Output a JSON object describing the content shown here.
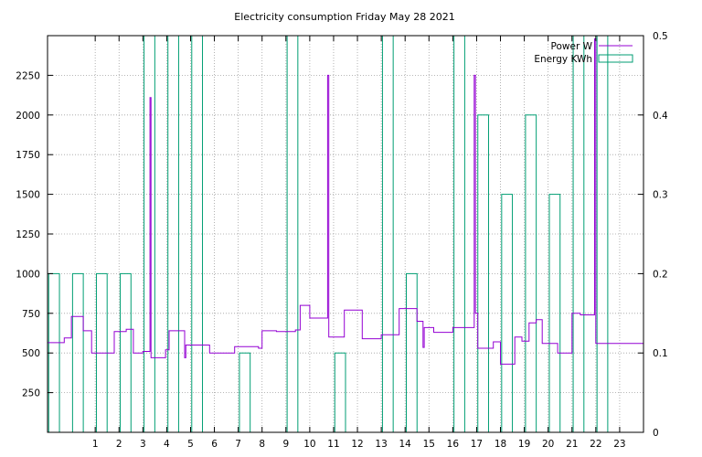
{
  "chart_data": {
    "type": "line",
    "title": "Electricity consumption Friday May 28 2021",
    "xlim": [
      -1,
      24
    ],
    "xticks": [
      1,
      2,
      3,
      4,
      5,
      6,
      7,
      8,
      9,
      10,
      11,
      12,
      13,
      14,
      15,
      16,
      17,
      18,
      19,
      20,
      21,
      22,
      23
    ],
    "ylim": [
      0,
      2500
    ],
    "yticks": [
      250,
      500,
      750,
      1000,
      1250,
      1500,
      1750,
      2000,
      2250
    ],
    "y2lim": [
      0,
      0.5
    ],
    "y2ticks": [
      0,
      0.1,
      0.2,
      0.3,
      0.4,
      0.5
    ],
    "grid": true,
    "legend_position": "top-right",
    "colors": {
      "power": "#9400d3",
      "energy": "#009e73"
    },
    "series": [
      {
        "name": "Power W",
        "axis": "left",
        "style": "step",
        "points": [
          [
            -1.0,
            565
          ],
          [
            -0.3,
            565
          ],
          [
            -0.3,
            595
          ],
          [
            0.0,
            595
          ],
          [
            0.0,
            730
          ],
          [
            0.5,
            730
          ],
          [
            0.5,
            640
          ],
          [
            0.85,
            640
          ],
          [
            0.85,
            500
          ],
          [
            1.8,
            500
          ],
          [
            1.8,
            635
          ],
          [
            2.3,
            635
          ],
          [
            2.3,
            650
          ],
          [
            2.6,
            650
          ],
          [
            2.6,
            500
          ],
          [
            3.0,
            500
          ],
          [
            3.0,
            510
          ],
          [
            3.3,
            510
          ],
          [
            3.3,
            2110
          ],
          [
            3.34,
            2110
          ],
          [
            3.34,
            470
          ],
          [
            3.95,
            470
          ],
          [
            3.95,
            520
          ],
          [
            4.1,
            520
          ],
          [
            4.1,
            640
          ],
          [
            4.75,
            640
          ],
          [
            4.75,
            470
          ],
          [
            4.8,
            470
          ],
          [
            4.8,
            550
          ],
          [
            5.8,
            550
          ],
          [
            5.8,
            500
          ],
          [
            6.85,
            500
          ],
          [
            6.85,
            540
          ],
          [
            7.85,
            540
          ],
          [
            7.85,
            530
          ],
          [
            8.0,
            530
          ],
          [
            8.0,
            640
          ],
          [
            8.6,
            640
          ],
          [
            8.6,
            635
          ],
          [
            9.4,
            635
          ],
          [
            9.4,
            645
          ],
          [
            9.6,
            645
          ],
          [
            9.6,
            800
          ],
          [
            10.0,
            800
          ],
          [
            10.0,
            720
          ],
          [
            10.75,
            720
          ],
          [
            10.75,
            2250
          ],
          [
            10.8,
            2250
          ],
          [
            10.8,
            600
          ],
          [
            11.45,
            600
          ],
          [
            11.45,
            770
          ],
          [
            12.2,
            770
          ],
          [
            12.2,
            590
          ],
          [
            13.0,
            590
          ],
          [
            13.0,
            615
          ],
          [
            13.75,
            615
          ],
          [
            13.75,
            780
          ],
          [
            14.5,
            780
          ],
          [
            14.5,
            700
          ],
          [
            14.75,
            700
          ],
          [
            14.75,
            535
          ],
          [
            14.8,
            535
          ],
          [
            14.8,
            660
          ],
          [
            15.2,
            660
          ],
          [
            15.2,
            630
          ],
          [
            16.0,
            630
          ],
          [
            16.0,
            660
          ],
          [
            16.9,
            660
          ],
          [
            16.9,
            2250
          ],
          [
            16.95,
            2250
          ],
          [
            16.95,
            750
          ],
          [
            17.05,
            750
          ],
          [
            17.05,
            530
          ],
          [
            17.7,
            530
          ],
          [
            17.7,
            570
          ],
          [
            18.0,
            570
          ],
          [
            18.0,
            430
          ],
          [
            18.6,
            430
          ],
          [
            18.6,
            600
          ],
          [
            18.9,
            600
          ],
          [
            18.9,
            575
          ],
          [
            19.2,
            575
          ],
          [
            19.2,
            690
          ],
          [
            19.5,
            690
          ],
          [
            19.5,
            710
          ],
          [
            19.75,
            710
          ],
          [
            19.75,
            560
          ],
          [
            20.4,
            560
          ],
          [
            20.4,
            500
          ],
          [
            21.0,
            500
          ],
          [
            21.0,
            750
          ],
          [
            21.35,
            750
          ],
          [
            21.35,
            740
          ],
          [
            21.95,
            740
          ],
          [
            21.95,
            2480
          ],
          [
            22.0,
            2480
          ],
          [
            22.0,
            560
          ],
          [
            24.0,
            560
          ]
        ]
      },
      {
        "name": "Energy KWh",
        "axis": "right",
        "style": "boxes",
        "x": [
          -1,
          0,
          1,
          2,
          3,
          4,
          5,
          6,
          7,
          8,
          9,
          10,
          11,
          12,
          13,
          14,
          15,
          16,
          17,
          18,
          19,
          20,
          21,
          22,
          23
        ],
        "values": [
          0.2,
          0.2,
          0.2,
          0.2,
          0.5,
          0.5,
          0.5,
          0.0,
          0.1,
          0.0,
          0.5,
          0.0,
          0.1,
          0.0,
          0.5,
          0.2,
          0.0,
          0.5,
          0.4,
          0.3,
          0.4,
          0.3,
          0.5,
          0.5,
          0.0
        ]
      }
    ]
  }
}
